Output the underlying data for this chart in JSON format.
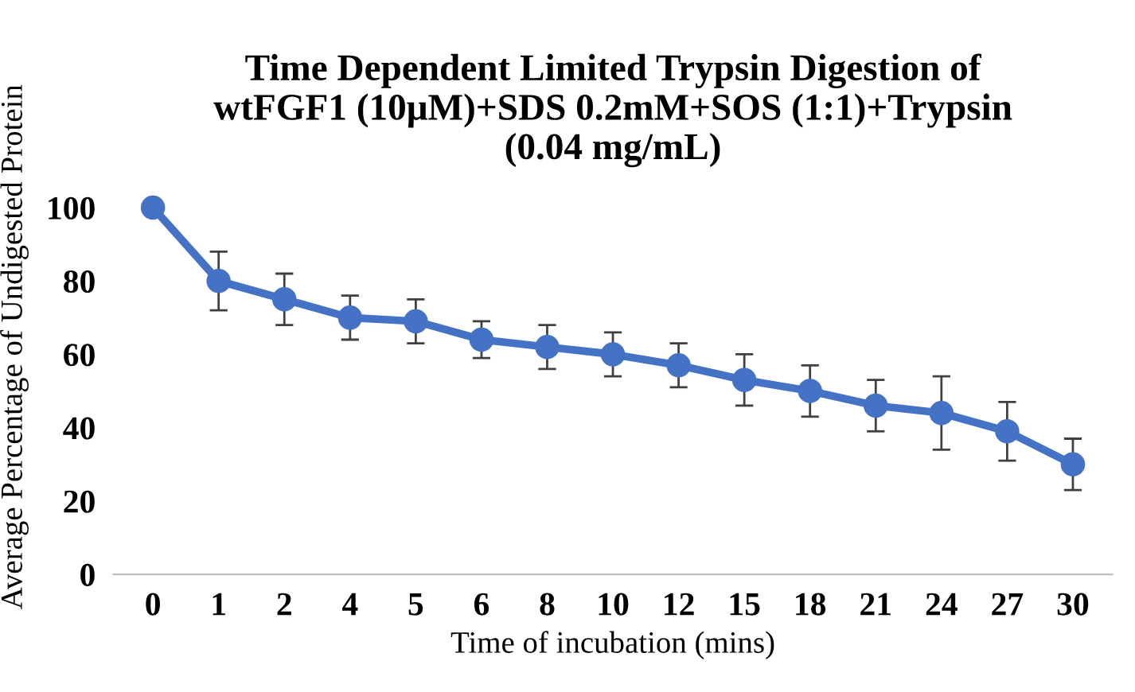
{
  "chart_data": {
    "type": "line",
    "title": "Time Dependent Limited Trypsin Digestion of\nwtFGF1 (10μM)+SDS 0.2mM+SOS (1:1)+Trypsin\n(0.04 mg/mL)",
    "xlabel": "Time of incubation (mins)",
    "ylabel": "Average Percentage of Undigested Protein",
    "categories": [
      "0",
      "1",
      "2",
      "4",
      "5",
      "6",
      "8",
      "10",
      "12",
      "15",
      "18",
      "21",
      "24",
      "27",
      "30"
    ],
    "series": [
      {
        "color": "#4472c4",
        "values": [
          100,
          80,
          75,
          70,
          69,
          64,
          62,
          60,
          57,
          53,
          50,
          46,
          44,
          39,
          30
        ],
        "errors": [
          null,
          8,
          7,
          6,
          6,
          5,
          6,
          6,
          6,
          7,
          7,
          7,
          10,
          8,
          7
        ]
      }
    ],
    "ylim": [
      0,
      100
    ],
    "yticks": [
      0,
      20,
      40,
      60,
      80,
      100
    ],
    "grid": false,
    "legend": false,
    "marker": "circle",
    "line_style": "solid"
  }
}
